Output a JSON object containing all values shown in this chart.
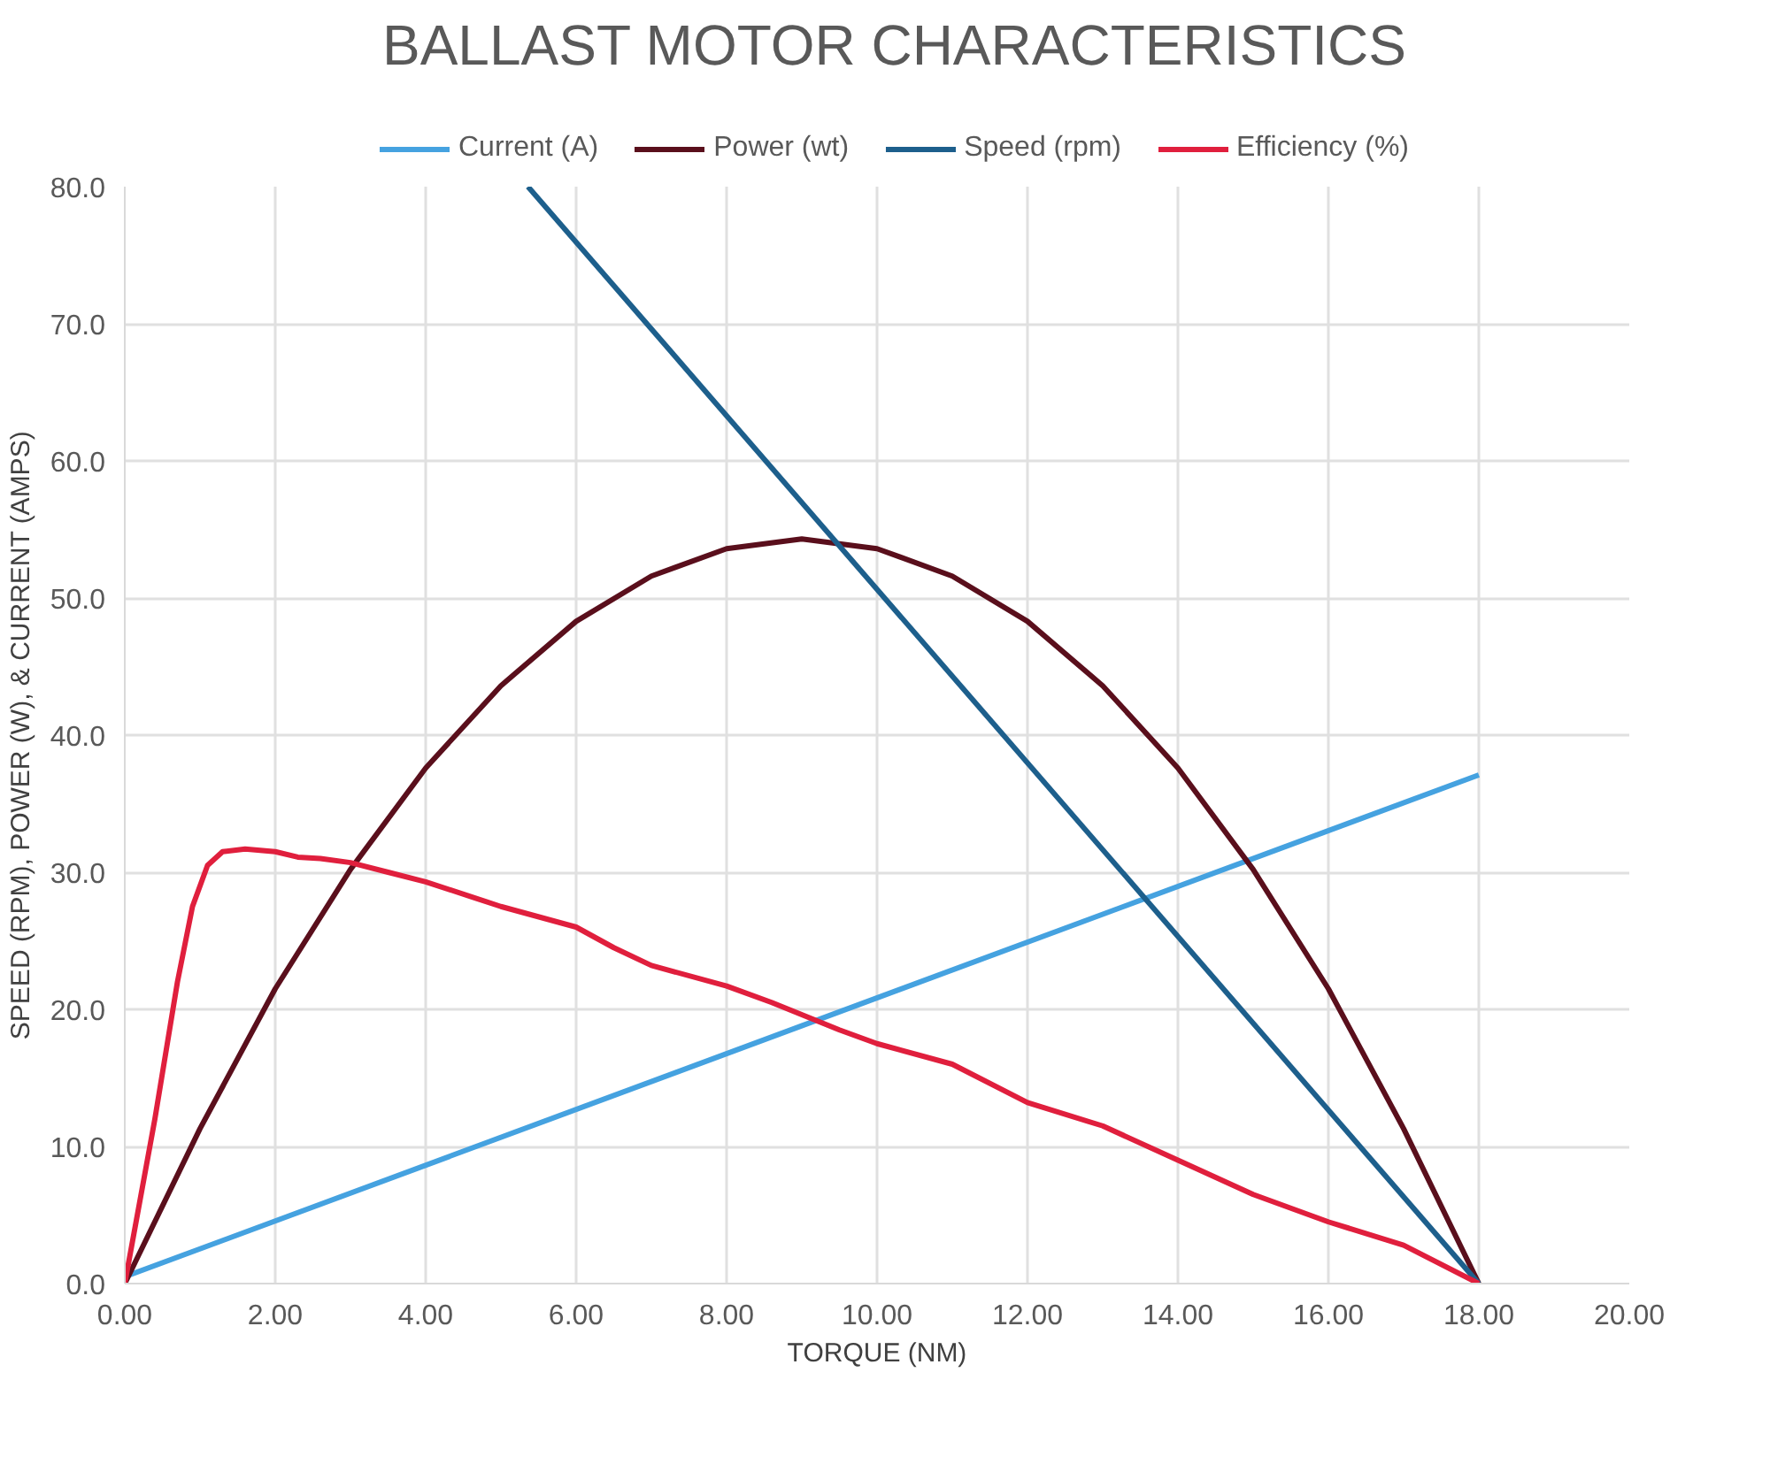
{
  "chart_data": {
    "type": "line",
    "title": "BALLAST MOTOR CHARACTERISTICS",
    "xlabel": "TORQUE (NM)",
    "ylabel": "SPEED (RPM), POWER (W), & CURRENT (AMPS)",
    "xlim": [
      0,
      20
    ],
    "ylim": [
      0,
      80
    ],
    "xticks": [
      {
        "value": 0,
        "label": "0.00"
      },
      {
        "value": 2,
        "label": "2.00"
      },
      {
        "value": 4,
        "label": "4.00"
      },
      {
        "value": 6,
        "label": "6.00"
      },
      {
        "value": 8,
        "label": "8.00"
      },
      {
        "value": 10,
        "label": "10.00"
      },
      {
        "value": 12,
        "label": "12.00"
      },
      {
        "value": 14,
        "label": "14.00"
      },
      {
        "value": 16,
        "label": "16.00"
      },
      {
        "value": 18,
        "label": "18.00"
      },
      {
        "value": 20,
        "label": "20.00"
      }
    ],
    "yticks": [
      {
        "value": 0,
        "label": "0.0"
      },
      {
        "value": 10,
        "label": "10.0"
      },
      {
        "value": 20,
        "label": "20.0"
      },
      {
        "value": 30,
        "label": "30.0"
      },
      {
        "value": 40,
        "label": "40.0"
      },
      {
        "value": 50,
        "label": "50.0"
      },
      {
        "value": 60,
        "label": "60.0"
      },
      {
        "value": 70,
        "label": "70.0"
      },
      {
        "value": 80,
        "label": "80.0"
      }
    ],
    "grid": true,
    "legend": "top",
    "line_style": "solid",
    "series": [
      {
        "name": "Current (A)",
        "color": "#45a2e0",
        "x": [
          0,
          18
        ],
        "values": [
          0.5,
          37.1
        ]
      },
      {
        "name": "Power (wt)",
        "color": "#5a0f1c",
        "x": [
          0,
          1,
          2,
          3,
          4,
          5,
          6,
          7,
          8,
          9,
          10,
          11,
          12,
          13,
          14,
          15,
          16,
          17,
          18
        ],
        "values": [
          0,
          11.3,
          21.5,
          30.2,
          37.6,
          43.6,
          48.3,
          51.6,
          53.6,
          54.3,
          53.6,
          51.6,
          48.3,
          43.6,
          37.6,
          30.2,
          21.5,
          11.3,
          0
        ]
      },
      {
        "name": "Speed (rpm)",
        "color": "#1d5f8c",
        "x": [
          5.36,
          18
        ],
        "values": [
          80,
          0
        ]
      },
      {
        "name": "Efficiency (%)",
        "color": "#e01f3d",
        "x": [
          0,
          0.4,
          0.7,
          0.9,
          1.1,
          1.3,
          1.6,
          2.0,
          2.3,
          2.6,
          3.0,
          3.5,
          4.0,
          5.0,
          6.0,
          6.5,
          7.0,
          8.0,
          8.6,
          9.5,
          10.0,
          11.0,
          12.0,
          13.0,
          14.0,
          15.0,
          16.0,
          17.0,
          18.0
        ],
        "values": [
          0,
          12,
          22,
          27.5,
          30.5,
          31.5,
          31.7,
          31.5,
          31.1,
          31.0,
          30.7,
          30.0,
          29.3,
          27.5,
          26,
          24.5,
          23.2,
          21.7,
          20.5,
          18.5,
          17.5,
          16,
          13.2,
          11.5,
          9,
          6.5,
          4.5,
          2.8,
          0
        ]
      }
    ]
  }
}
